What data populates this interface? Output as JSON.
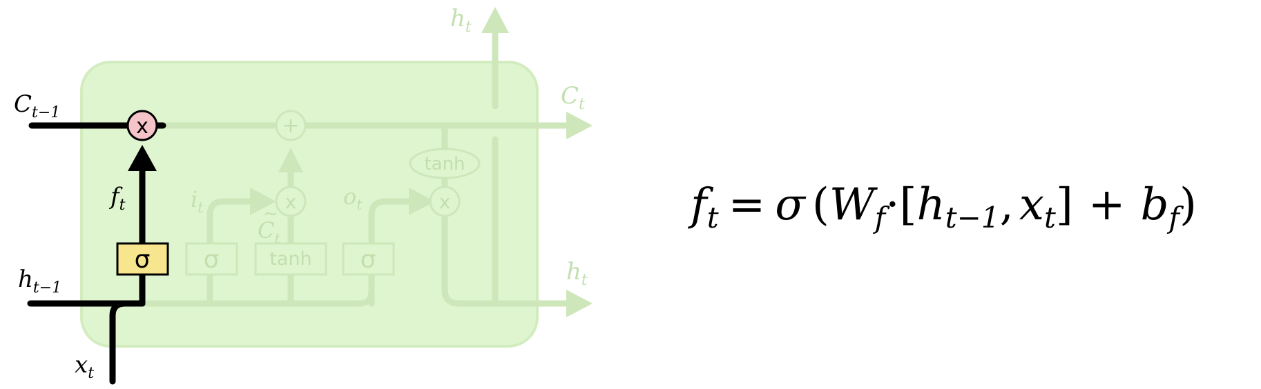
{
  "colors": {
    "cell_fill": "#dff5cf",
    "cell_stroke": "#d2ecbf",
    "faint_line": "#cde6ba",
    "faint_text": "#c3dfae",
    "active_line": "#000000",
    "multiply_node_fill": "#f5c4c8",
    "sigma_gate_fill": "#f7e68d"
  },
  "labels": {
    "h_t_top": {
      "base": "h",
      "sub": "t"
    },
    "c_t_right": {
      "base": "C",
      "sub": "t"
    },
    "h_t_right": {
      "base": "h",
      "sub": "t"
    },
    "c_t_minus_1": {
      "base": "C",
      "sub": "t−1"
    },
    "h_t_minus_1": {
      "base": "h",
      "sub": "t−1"
    },
    "x_t": {
      "base": "x",
      "sub": "t"
    },
    "f_t": {
      "base": "f",
      "sub": "t"
    },
    "i_t": {
      "base": "i",
      "sub": "t"
    },
    "o_t": {
      "base": "o",
      "sub": "t"
    },
    "c_tilde_t": {
      "base": "C",
      "accent": "~",
      "sub": "t"
    }
  },
  "gates": {
    "forget_sigma": "σ",
    "input_sigma": "σ",
    "candidate_tanh": "tanh",
    "output_sigma": "σ",
    "cell_tanh": "tanh"
  },
  "nodes": {
    "forget_multiply": "x",
    "add": "+",
    "input_multiply": "x",
    "output_multiply": "x"
  },
  "equation": {
    "lhs_base": "f",
    "lhs_sub": "t",
    "equals": "=",
    "sigma": "σ",
    "open_paren": "(",
    "w_base": "W",
    "w_sub": "f",
    "dot": "·",
    "open_bracket": "[",
    "h_base": "h",
    "h_sub": "t−1",
    "comma": ",",
    "x_base": "x",
    "x_sub": "t",
    "close_bracket": "]",
    "plus": "+",
    "b_base": "b",
    "b_sub": "f",
    "close_paren": ")"
  }
}
